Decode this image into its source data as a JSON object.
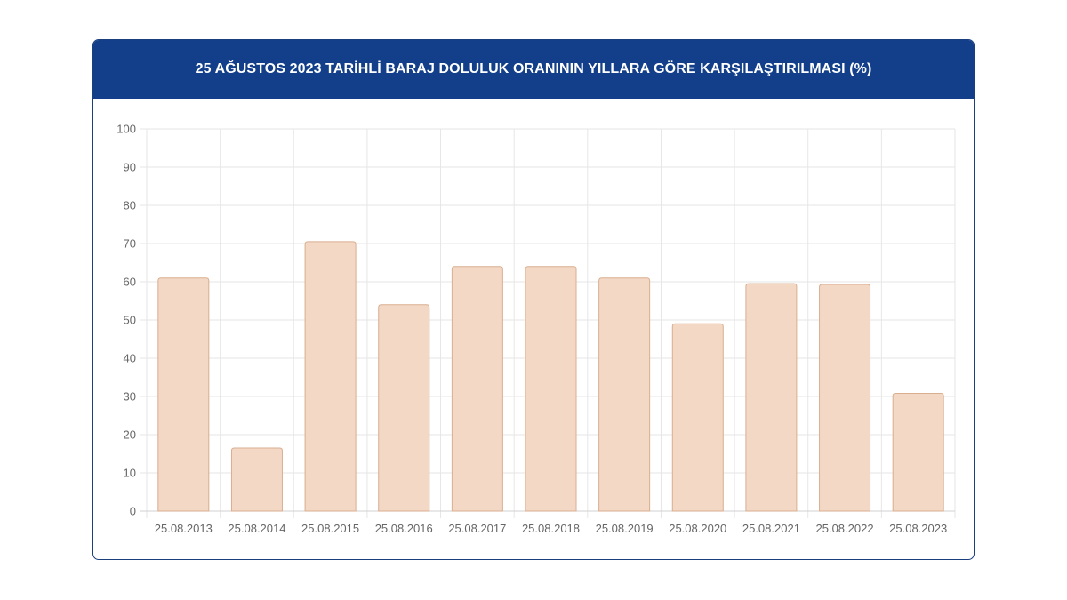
{
  "chart_data": {
    "type": "bar",
    "title": "25 AĞUSTOS 2023 TARİHLİ BARAJ DOLULUK ORANININ YILLARA GÖRE KARŞILAŞTIRILMASI (%)",
    "categories": [
      "25.08.2013",
      "25.08.2014",
      "25.08.2015",
      "25.08.2016",
      "25.08.2017",
      "25.08.2018",
      "25.08.2019",
      "25.08.2020",
      "25.08.2021",
      "25.08.2022",
      "25.08.2023"
    ],
    "values": [
      61,
      16.5,
      70.5,
      54,
      64,
      64,
      61,
      49,
      59.5,
      59.3,
      30.8
    ],
    "xlabel": "",
    "ylabel": "",
    "ylim": [
      0,
      100
    ],
    "yticks": [
      0,
      10,
      20,
      30,
      40,
      50,
      60,
      70,
      80,
      90,
      100
    ],
    "grid": true,
    "colors": {
      "header_bg": "#123e8a",
      "bar_fill": "#f3d8c6",
      "bar_stroke": "#d9ae8f",
      "grid": "#e6e6e6"
    }
  }
}
